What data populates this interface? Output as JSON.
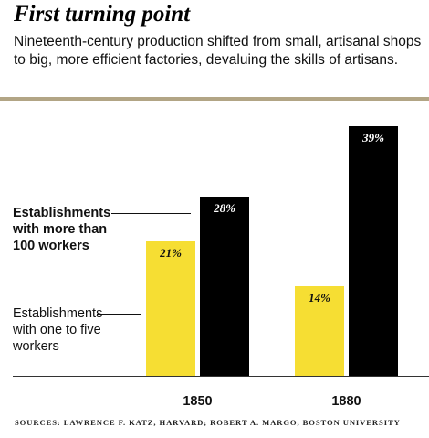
{
  "title": "First turning point",
  "subtitle": "Nineteenth-century production shifted from small, artisanal shops to big, more efficient factories, devaluing the skills of artisans.",
  "source": "SOURCES: LAWRENCE F. KATZ, HARVARD; ROBERT A. MARGO, BOSTON UNIVERSITY",
  "legend": {
    "large": [
      "Establishments",
      "with more than",
      "100 workers"
    ],
    "small": [
      "Establishments",
      "with one to five",
      "workers"
    ]
  },
  "colors": {
    "small": "#f6de33",
    "large": "#000000",
    "rule": "#b2a585"
  },
  "chart_data": {
    "type": "bar",
    "categories": [
      "1850",
      "1880"
    ],
    "series": [
      {
        "name": "Establishments with one to five workers",
        "values": [
          21,
          14
        ],
        "labels": [
          "21%",
          "14%"
        ]
      },
      {
        "name": "Establishments with more than 100 workers",
        "values": [
          28,
          39
        ],
        "labels": [
          "28%",
          "39%"
        ]
      }
    ],
    "unit": "%",
    "ylim": [
      0,
      42
    ]
  }
}
